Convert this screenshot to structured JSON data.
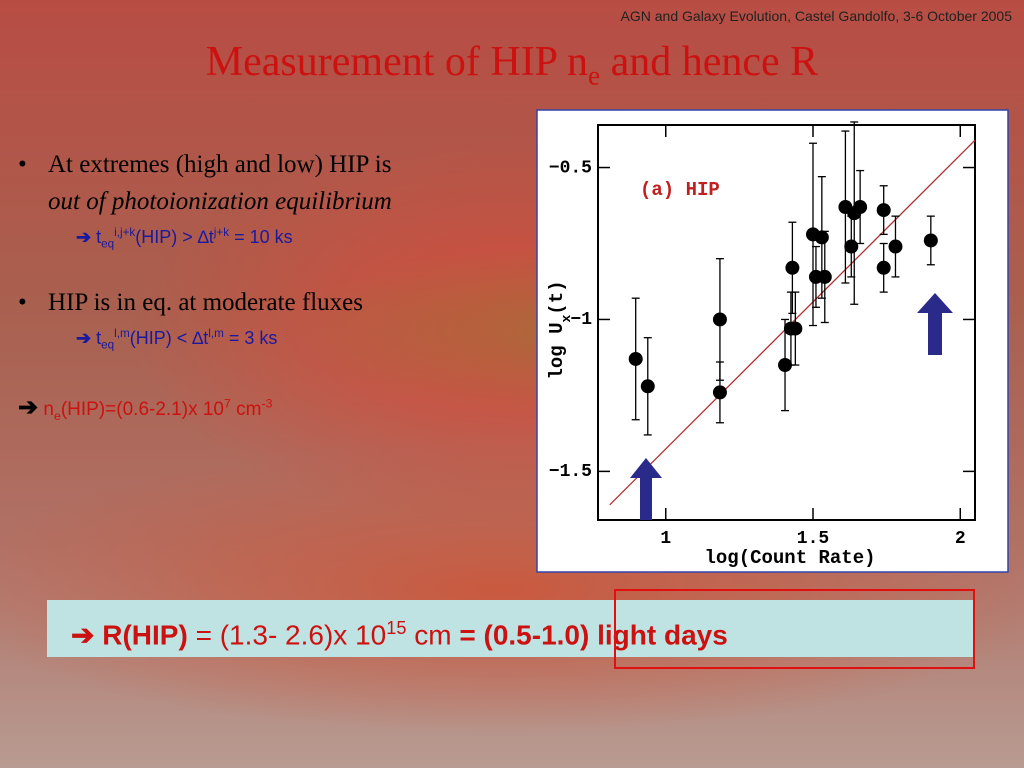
{
  "header": "AGN and Galaxy Evolution, Castel Gandolfo, 3-6 October 2005",
  "title": [
    "Measurement of HIP n",
    "e",
    " and hence R"
  ],
  "bullets": [
    {
      "text": [
        "At extremes (high and low) HIP is",
        "out of photoionization equilibrium"
      ],
      "detail": [
        "➔",
        " t",
        "eq",
        "i,j+k",
        "(HIP) > ∆t",
        "j+k",
        " = 10 ks"
      ]
    },
    {
      "text": [
        "HIP is in eq. at moderate fluxes"
      ],
      "detail": [
        "➔",
        " t",
        "eq",
        "l,m",
        "(HIP) < ∆t",
        "l,m",
        " = 3 ks"
      ]
    }
  ],
  "density": [
    "➔",
    " n",
    "e",
    "(HIP)=(0.6-2.1)x 10",
    "7",
    " cm",
    "-3"
  ],
  "result": [
    "➔ R(HIP)",
    " = (1.3- 2.6)x 10",
    "15",
    " cm ",
    "=",
    " ",
    "(0.5-1.0) light days"
  ],
  "chart_data": {
    "type": "scatter",
    "annotation": "(a) HIP",
    "xlabel": "log(Count Rate)",
    "ylabel": [
      "log U",
      "x",
      "(t)"
    ],
    "x": [
      0.898,
      0.939,
      1.184,
      1.184,
      1.405,
      1.43,
      1.425,
      1.44,
      1.5,
      1.51,
      1.53,
      1.54,
      1.61,
      1.63,
      1.64,
      1.66,
      1.74,
      1.74,
      1.78,
      1.9
    ],
    "values": [
      -1.13,
      -1.22,
      -1.0,
      -1.24,
      -1.15,
      -0.83,
      -1.03,
      -1.03,
      -0.72,
      -0.86,
      -0.73,
      -0.86,
      -0.63,
      -0.76,
      -0.65,
      -0.63,
      -0.64,
      -0.83,
      -0.76,
      -0.74
    ],
    "errors": [
      0.2,
      0.16,
      0.2,
      0.1,
      0.15,
      0.15,
      0.12,
      0.12,
      0.3,
      0.1,
      0.2,
      0.15,
      0.25,
      0.1,
      0.3,
      0.12,
      0.08,
      0.08,
      0.1,
      0.08
    ],
    "color": "#000000",
    "fit_line": {
      "x": [
        0.81,
        2.05
      ],
      "y": [
        -1.61,
        -0.41
      ],
      "color": "#b03030"
    },
    "xlim": [
      0.77,
      2.05
    ],
    "ylim": [
      -1.66,
      -0.36
    ],
    "xticks": [
      1,
      1.5,
      2
    ],
    "yticks": [
      {
        "value": -0.5,
        "label": "−0.5"
      },
      {
        "value": -1,
        "label": "−1"
      },
      {
        "value": -1.5,
        "label": "−1.5"
      }
    ]
  }
}
